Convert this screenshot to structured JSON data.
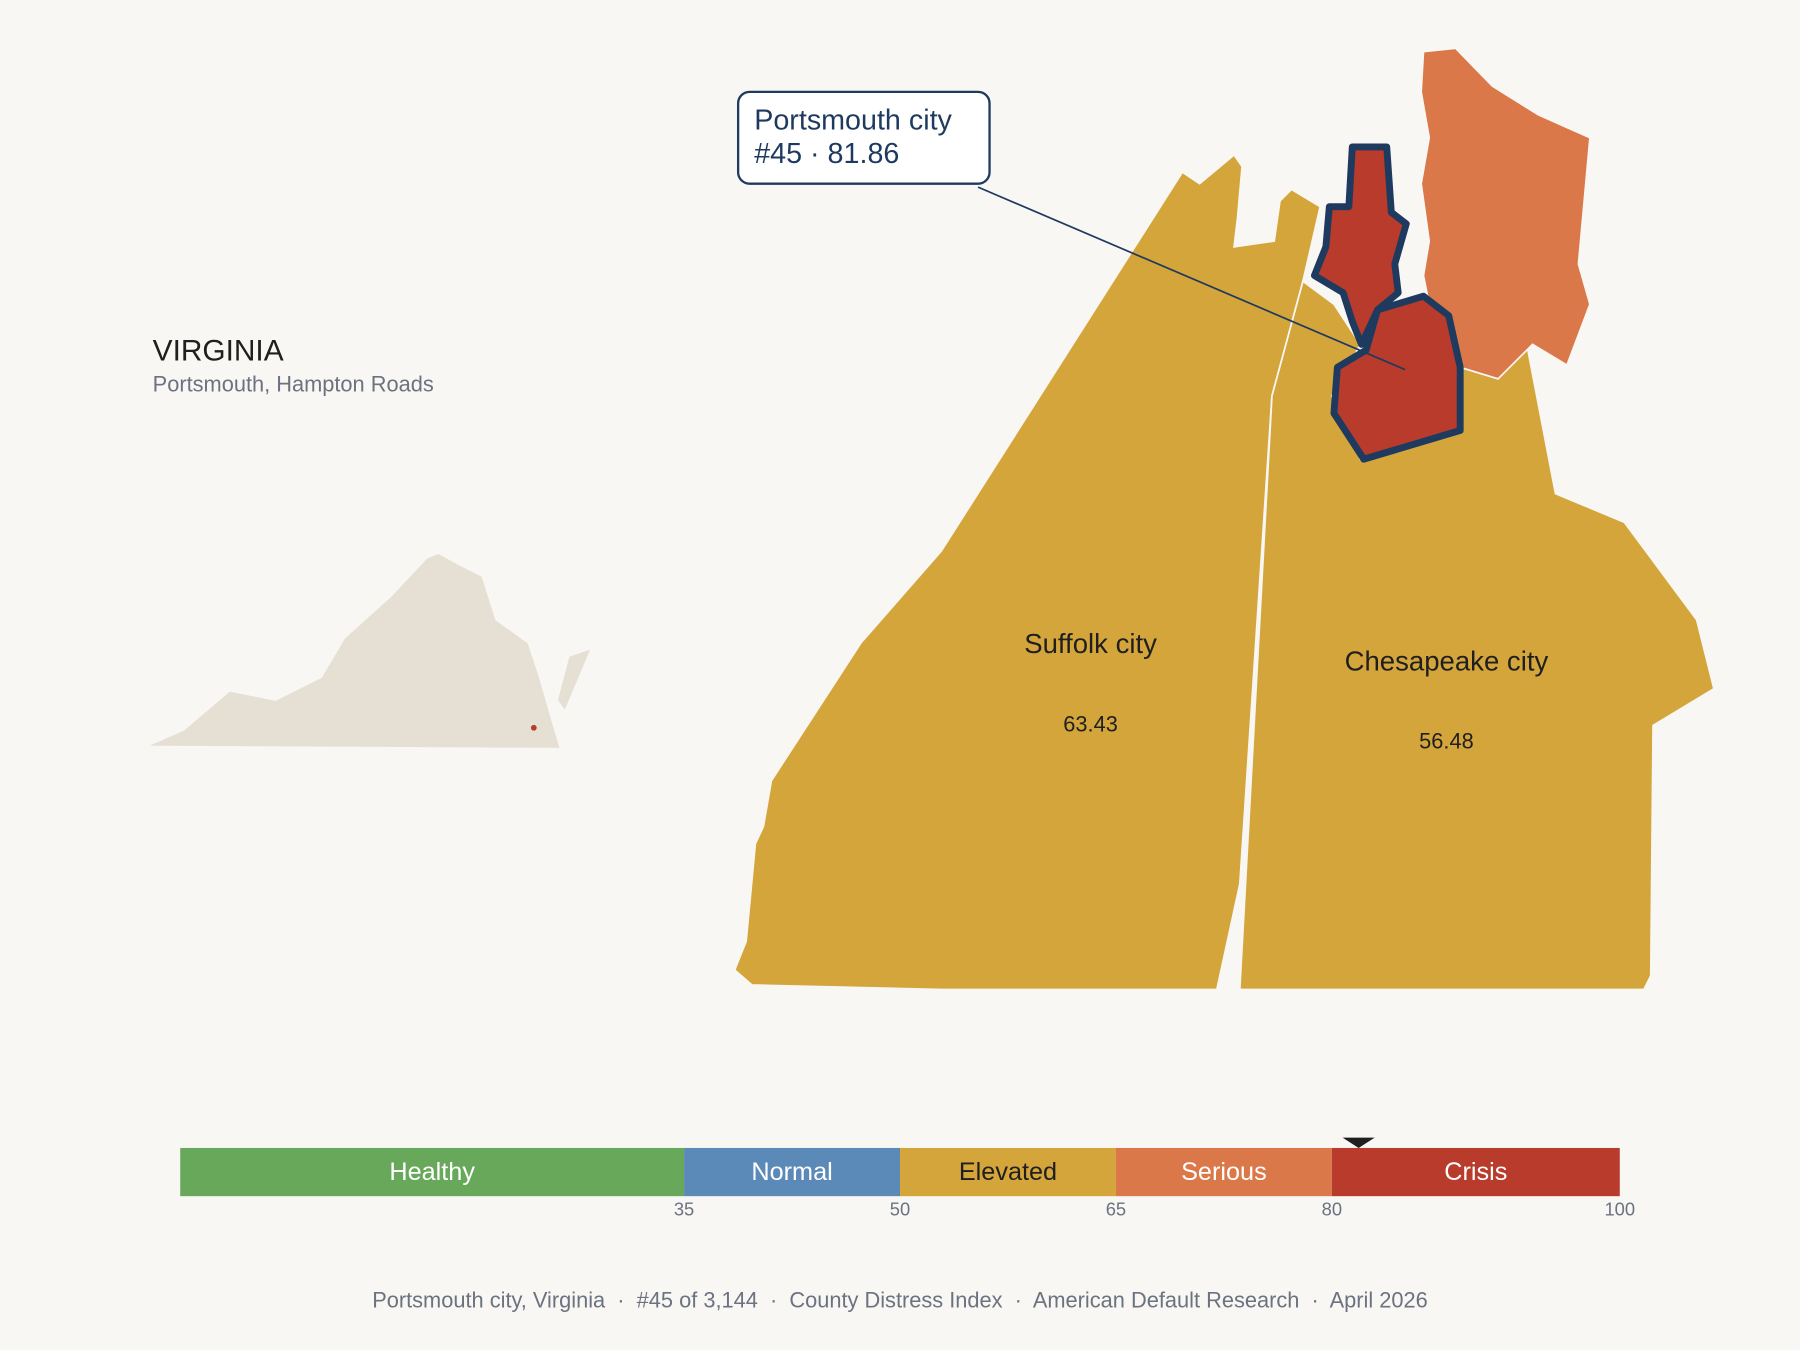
{
  "header": {
    "title": "VIRGINIA",
    "subtitle": "Portsmouth, Hampton Roads"
  },
  "callout": {
    "name": "Portsmouth city",
    "score": {
      "value": 81.86,
      "label": "#45 · 81.86"
    }
  },
  "regions": [
    {
      "name": "Suffolk city",
      "value": 63.43
    },
    {
      "name": "Chesapeake city",
      "value": 56.48
    }
  ],
  "legend": {
    "range": [
      0,
      100
    ],
    "ticks": [
      35,
      50,
      65,
      80,
      100
    ],
    "bands": [
      {
        "label": "Healthy",
        "color": "#67a85a"
      },
      {
        "label": "Normal",
        "color": "#5b8ab8"
      },
      {
        "label": "Elevated",
        "color": "#d4a53a"
      },
      {
        "label": "Serious",
        "color": "#db784a"
      },
      {
        "label": "Crisis",
        "color": "#b83b2c"
      }
    ]
  },
  "footer": "Portsmouth city, Virginia  ·  #45 of 3,144  ·  County Distress Index  ·  American Default Research  ·  April 2026"
}
